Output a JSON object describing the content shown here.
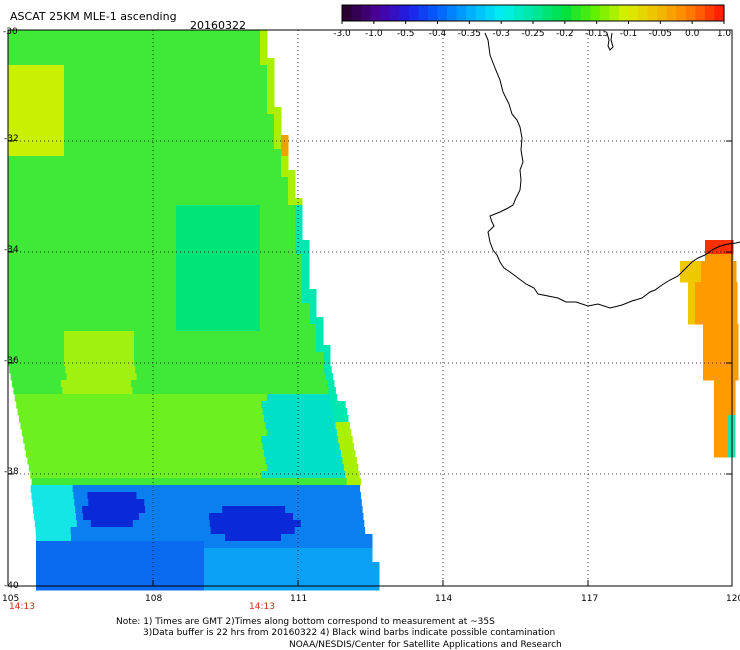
{
  "header": {
    "title": "ASCAT 25KM MLE-1 ascending",
    "date": "20160322"
  },
  "colorbar": {
    "tick_labels": [
      "-3.0",
      "-1.0",
      "-0.5",
      "-0.4",
      "-0.35",
      "-0.3",
      "-0.25",
      "-0.2",
      "-0.15",
      "-0.1",
      "-0.05",
      "0.0",
      "1.0"
    ],
    "colors": [
      "#2a0030",
      "#4a009a",
      "#2020e6",
      "#0064ff",
      "#00b0ff",
      "#00f0f0",
      "#00e8a0",
      "#00e040",
      "#60f000",
      "#d8f000",
      "#f0c000",
      "#ff8000",
      "#ff2000"
    ]
  },
  "map": {
    "lat_labels": [
      "-30",
      "-32",
      "-34",
      "-36",
      "-38",
      "-40"
    ],
    "lon_labels": [
      "105",
      "108",
      "111",
      "114",
      "117",
      "120"
    ],
    "time_labels": [
      "14:13",
      "14:13"
    ]
  },
  "notes": {
    "line1": "Note: 1) Times are GMT 2)Times along bottom correspond to measurement at ~35S",
    "line2": "3)Data buffer is 22 hrs from 20160322 4) Black wind barbs indicate possible contamination",
    "line3": "NOAA/NESDIS/Center for Satellite Applications and Research"
  }
}
